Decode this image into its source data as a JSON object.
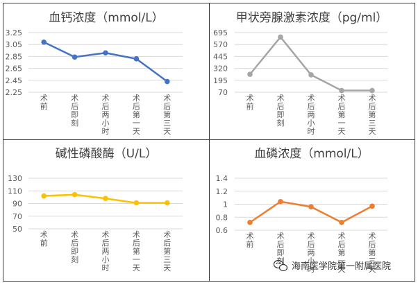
{
  "chart_data": [
    {
      "type": "line",
      "title": "血钙浓度（mmol/L）",
      "categories": [
        "术前",
        "术后即刻",
        "术后两小时",
        "术后第一天",
        "术后第三天"
      ],
      "series": [
        {
          "values": [
            3.09,
            2.84,
            2.91,
            2.81,
            2.43
          ]
        }
      ],
      "yticks": [
        2.25,
        2.45,
        2.65,
        2.85,
        3.05,
        3.25
      ],
      "ylim": [
        2.25,
        3.25
      ],
      "color": "#4472c4",
      "grid": true
    },
    {
      "type": "line",
      "title": "甲状旁腺激素浓度（pg/ml）",
      "categories": [
        "术前",
        "术后即刻",
        "术后两小时",
        "术后第一天",
        "术后第三天"
      ],
      "series": [
        {
          "values": [
            258,
            648,
            252,
            88,
            88
          ]
        }
      ],
      "yticks": [
        70,
        195,
        320,
        445,
        570,
        695
      ],
      "ylim": [
        70,
        695
      ],
      "color": "#a5a5a5",
      "grid": true
    },
    {
      "type": "line",
      "title": "碱性磷酸酶（U/L）",
      "categories": [
        "术前",
        "术后即刻",
        "术后两小时",
        "术后第一天",
        "术后第三天"
      ],
      "series": [
        {
          "values": [
            102,
            104,
            98,
            91,
            91
          ]
        }
      ],
      "yticks": [
        50,
        70,
        90,
        110,
        130
      ],
      "ylim": [
        50,
        130
      ],
      "color": "#ffc000",
      "grid": true
    },
    {
      "type": "line",
      "title": "血磷浓度（mmol/L）",
      "categories": [
        "术前",
        "术后即刻",
        "术后两小时",
        "术后第一天",
        "术后第三天"
      ],
      "series": [
        {
          "values": [
            0.72,
            1.04,
            0.96,
            0.72,
            0.97
          ]
        }
      ],
      "yticks": [
        0.6,
        0.8,
        1,
        1.2,
        1.4
      ],
      "ylim": [
        0.6,
        1.4
      ],
      "color": "#ed7d31",
      "grid": true
    }
  ],
  "watermark": {
    "text": "海南医学院第一附属医院",
    "icon": "wechat-icon"
  }
}
